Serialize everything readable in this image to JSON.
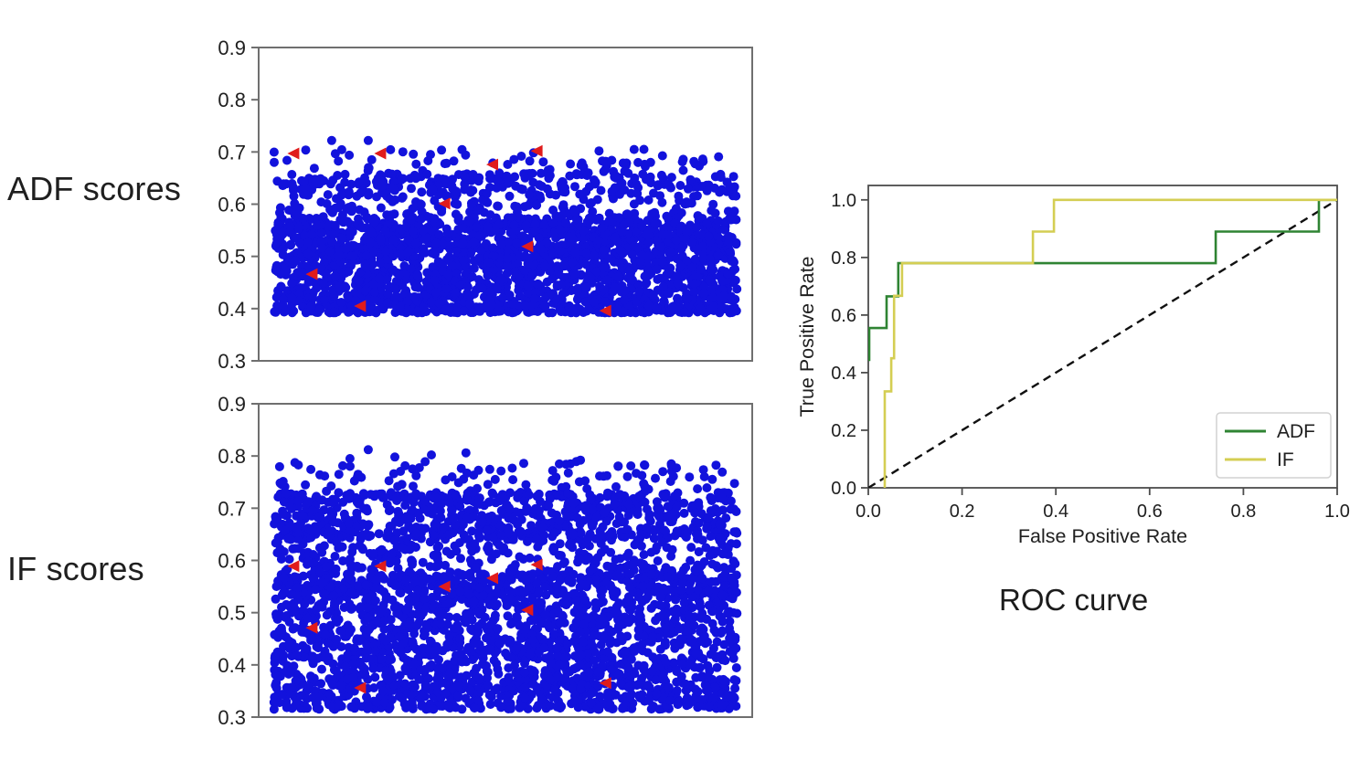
{
  "labels": {
    "adf_plot": "ADF scores",
    "if_plot": "IF scores",
    "roc_title": "ROC curve"
  },
  "colors": {
    "blue": "#1212dc",
    "red": "#e01c1c",
    "green": "#2f8433",
    "yellow": "#d4ce53",
    "spine_gray": "#6f6f6f",
    "spine_dark": "#4d4d4d",
    "text": "#202020",
    "legend_border": "#d2d2d2",
    "diagonal": "#111111",
    "background": "#ffffff"
  },
  "chart_data": [
    {
      "id": "adf_scores",
      "type": "scatter",
      "title": "ADF scores",
      "ylim": [
        0.3,
        0.9
      ],
      "yticks": [
        "0.9",
        "0.8",
        "0.7",
        "0.6",
        "0.5",
        "0.4",
        "0.3"
      ],
      "xticks": [],
      "grid": false,
      "inlier_marker": "circle",
      "outlier_marker": "triangle-left",
      "inlier_count": 2700,
      "seed": 12345,
      "inlier_bands": [
        {
          "w": 0.7,
          "min": 0.392,
          "max": 0.575,
          "exp": 1.35
        },
        {
          "w": 0.24,
          "min": 0.5,
          "max": 0.66,
          "exp": 1.15
        },
        {
          "w": 0.06,
          "min": 0.615,
          "max": 0.705,
          "exp": 1.0
        }
      ],
      "extra_inliers": [
        [
          0.148,
          0.722
        ],
        [
          0.222,
          0.722
        ]
      ],
      "outliers": [
        [
          0.072,
          0.697
        ],
        [
          0.248,
          0.697
        ],
        [
          0.378,
          0.601
        ],
        [
          0.475,
          0.676
        ],
        [
          0.565,
          0.702
        ],
        [
          0.546,
          0.519
        ],
        [
          0.109,
          0.466
        ],
        [
          0.207,
          0.405
        ],
        [
          0.704,
          0.396
        ]
      ]
    },
    {
      "id": "if_scores",
      "type": "scatter",
      "title": "IF scores",
      "ylim": [
        0.3,
        0.9
      ],
      "yticks": [
        "0.9",
        "0.8",
        "0.7",
        "0.6",
        "0.5",
        "0.4",
        "0.3"
      ],
      "xticks": [],
      "grid": false,
      "inlier_marker": "circle",
      "outlier_marker": "triangle-left",
      "inlier_count": 3300,
      "seed": 98765,
      "inlier_bands": [
        {
          "w": 0.6,
          "min": 0.315,
          "max": 0.575,
          "exp": 1.2
        },
        {
          "w": 0.16,
          "min": 0.53,
          "max": 0.66,
          "exp": 1.1
        },
        {
          "w": 0.2,
          "min": 0.64,
          "max": 0.73,
          "exp": 1.0
        },
        {
          "w": 0.04,
          "min": 0.71,
          "max": 0.79,
          "exp": 1.0
        }
      ],
      "extra_inliers": [
        [
          0.185,
          0.795
        ],
        [
          0.222,
          0.812
        ],
        [
          0.276,
          0.798
        ],
        [
          0.35,
          0.802
        ],
        [
          0.42,
          0.806
        ],
        [
          0.537,
          0.786
        ],
        [
          0.652,
          0.792
        ],
        [
          0.754,
          0.781
        ]
      ],
      "outliers": [
        [
          0.072,
          0.589
        ],
        [
          0.248,
          0.589
        ],
        [
          0.378,
          0.55
        ],
        [
          0.475,
          0.566
        ],
        [
          0.565,
          0.592
        ],
        [
          0.546,
          0.505
        ],
        [
          0.109,
          0.471
        ],
        [
          0.207,
          0.356
        ],
        [
          0.704,
          0.365
        ]
      ]
    },
    {
      "id": "roc_curve",
      "type": "line",
      "title": "ROC curve",
      "xlabel": "False Positive Rate",
      "ylabel": "True Positive Rate",
      "xlim": [
        0.0,
        1.0
      ],
      "ylim": [
        0.0,
        1.05
      ],
      "xticks": [
        "0.0",
        "0.2",
        "0.4",
        "0.6",
        "0.8",
        "1.0"
      ],
      "yticks": [
        "0.0",
        "0.2",
        "0.4",
        "0.6",
        "0.8",
        "1.0"
      ],
      "grid": false,
      "legend": {
        "position": "lower right",
        "entries": [
          "ADF",
          "IF"
        ]
      },
      "diagonal": [
        [
          0,
          0
        ],
        [
          1,
          1
        ]
      ],
      "series": [
        {
          "name": "ADF",
          "color_key": "green",
          "points": [
            [
              0.002,
              0.44
            ],
            [
              0.002,
              0.555
            ],
            [
              0.039,
              0.555
            ],
            [
              0.039,
              0.665
            ],
            [
              0.064,
              0.665
            ],
            [
              0.064,
              0.78
            ],
            [
              0.741,
              0.78
            ],
            [
              0.741,
              0.89
            ],
            [
              0.961,
              0.89
            ],
            [
              0.961,
              1.0
            ],
            [
              1.0,
              1.0
            ]
          ]
        },
        {
          "name": "IF",
          "color_key": "yellow",
          "points": [
            [
              0.035,
              0.0
            ],
            [
              0.035,
              0.335
            ],
            [
              0.049,
              0.335
            ],
            [
              0.049,
              0.45
            ],
            [
              0.055,
              0.45
            ],
            [
              0.055,
              0.667
            ],
            [
              0.072,
              0.667
            ],
            [
              0.072,
              0.78
            ],
            [
              0.351,
              0.78
            ],
            [
              0.351,
              0.89
            ],
            [
              0.396,
              0.89
            ],
            [
              0.396,
              1.0
            ],
            [
              1.0,
              1.0
            ]
          ]
        }
      ]
    }
  ]
}
